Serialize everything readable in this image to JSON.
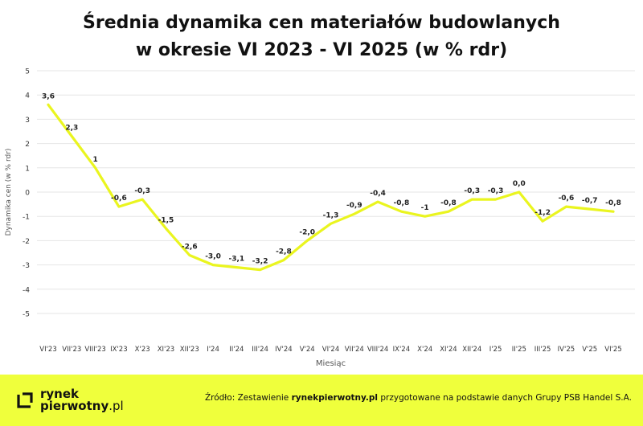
{
  "chart_data": {
    "type": "line",
    "title_line1": "Średnia dynamika cen materiałów budowlanych",
    "title_line2": "w okresie VI 2023 - VI 2025 (w % rdr)",
    "xlabel": "Miesiąc",
    "ylabel": "Dynamika cen (w % rdr)",
    "ylim": [
      -5,
      5
    ],
    "yticks": [
      5,
      4,
      3,
      2,
      1,
      0,
      -1,
      -2,
      -3,
      -4,
      -5
    ],
    "grid": true,
    "categories": [
      "VI'23",
      "VII'23",
      "VIII'23",
      "IX'23",
      "X'23",
      "XI'23",
      "XII'23",
      "I'24",
      "II'24",
      "III'24",
      "IV'24",
      "V'24",
      "VI'24",
      "VII'24",
      "VIII'24",
      "IX'24",
      "X'24",
      "XI'24",
      "XII'24",
      "I'25",
      "II'25",
      "III'25",
      "IV'25",
      "V'25",
      "VI'25"
    ],
    "values": [
      3.6,
      2.3,
      1,
      -0.6,
      -0.3,
      -1.5,
      -2.6,
      -3.0,
      -3.1,
      -3.2,
      -2.8,
      -2.0,
      -1.3,
      -0.9,
      -0.4,
      -0.8,
      -1,
      -0.8,
      -0.3,
      -0.3,
      0.0,
      -1.2,
      -0.6,
      -0.7,
      -0.8
    ],
    "data_labels": [
      "3,6",
      "2,3",
      "1",
      "-0,6",
      "-0,3",
      "-1,5",
      "-2,6",
      "-3,0",
      "-3,1",
      "-3,2",
      "-2,8",
      "-2,0",
      "-1,3",
      "-0,9",
      "-0,4",
      "-0,8",
      "-1",
      "-0,8",
      "-0,3",
      "-0,3",
      "0,0",
      "-1,2",
      "-0,6",
      "-0,7",
      "-0,8"
    ],
    "line_color": "#eaf51f"
  },
  "footer": {
    "logo_line1": "rynek",
    "logo_line2": "pierwotny",
    "logo_suffix": ".pl",
    "source_prefix": "Źródło: Zestawienie ",
    "source_brand": "rynekpierwotny.pl",
    "source_suffix": " przygotowane na podstawie danych Grupy PSB Handel S.A."
  },
  "colors": {
    "accent": "#efff3c",
    "grid": "#e6e6e6"
  }
}
